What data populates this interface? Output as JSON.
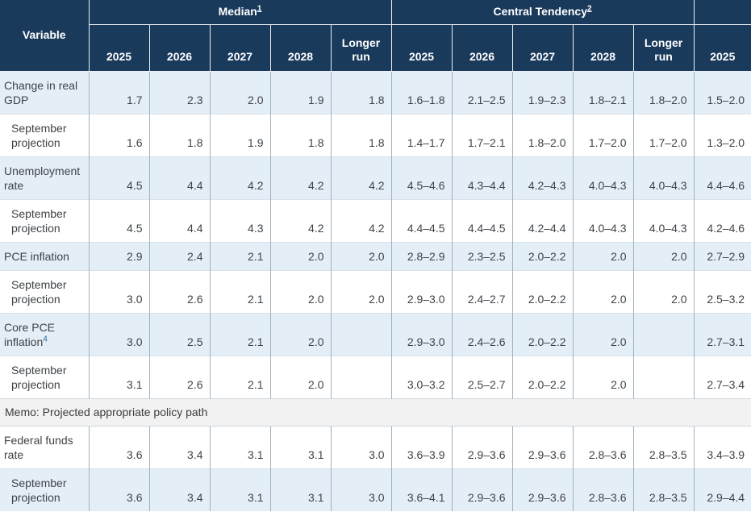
{
  "colors": {
    "header_bg": "#1a3a5c",
    "stripe_blue": "#e4eef7",
    "memo_bg": "#f2f2f2",
    "link_blue": "#2a6496"
  },
  "table": {
    "variable_header": "Variable",
    "col_groups": [
      {
        "label": "Median",
        "footnote": "1",
        "span": 5
      },
      {
        "label": "Central Tendency",
        "footnote": "2",
        "span": 5
      },
      {
        "label": "",
        "footnote": "",
        "span": 1
      }
    ],
    "year_headers": [
      "2025",
      "2026",
      "2027",
      "2028",
      "Longer run",
      "2025",
      "2026",
      "2027",
      "2028",
      "Longer run",
      "2025"
    ],
    "rows": [
      {
        "label": "Change in real GDP",
        "footnote": "",
        "indent": false,
        "shade": "blue",
        "values": [
          "1.7",
          "2.3",
          "2.0",
          "1.9",
          "1.8",
          "1.6–1.8",
          "2.1–2.5",
          "1.9–2.3",
          "1.8–2.1",
          "1.8–2.0",
          "1.5–2.0"
        ]
      },
      {
        "label": "September projection",
        "footnote": "",
        "indent": true,
        "shade": "white",
        "values": [
          "1.6",
          "1.8",
          "1.9",
          "1.8",
          "1.8",
          "1.4–1.7",
          "1.7–2.1",
          "1.8–2.0",
          "1.7–2.0",
          "1.7–2.0",
          "1.3–2.0"
        ]
      },
      {
        "label": "Unemployment rate",
        "footnote": "",
        "indent": false,
        "shade": "blue",
        "values": [
          "4.5",
          "4.4",
          "4.2",
          "4.2",
          "4.2",
          "4.5–4.6",
          "4.3–4.4",
          "4.2–4.3",
          "4.0–4.3",
          "4.0–4.3",
          "4.4–4.6"
        ]
      },
      {
        "label": "September projection",
        "footnote": "",
        "indent": true,
        "shade": "white",
        "values": [
          "4.5",
          "4.4",
          "4.3",
          "4.2",
          "4.2",
          "4.4–4.5",
          "4.4–4.5",
          "4.2–4.4",
          "4.0–4.3",
          "4.0–4.3",
          "4.2–4.6"
        ]
      },
      {
        "label": "PCE inflation",
        "footnote": "",
        "indent": false,
        "shade": "blue",
        "values": [
          "2.9",
          "2.4",
          "2.1",
          "2.0",
          "2.0",
          "2.8–2.9",
          "2.3–2.5",
          "2.0–2.2",
          "2.0",
          "2.0",
          "2.7–2.9"
        ]
      },
      {
        "label": "September projection",
        "footnote": "",
        "indent": true,
        "shade": "white",
        "values": [
          "3.0",
          "2.6",
          "2.1",
          "2.0",
          "2.0",
          "2.9–3.0",
          "2.4–2.7",
          "2.0–2.2",
          "2.0",
          "2.0",
          "2.5–3.2"
        ]
      },
      {
        "label": "Core PCE inflation",
        "footnote": "4",
        "indent": false,
        "shade": "blue",
        "values": [
          "3.0",
          "2.5",
          "2.1",
          "2.0",
          "",
          "2.9–3.0",
          "2.4–2.6",
          "2.0–2.2",
          "2.0",
          "",
          "2.7–3.1"
        ]
      },
      {
        "label": "September projection",
        "footnote": "",
        "indent": true,
        "shade": "white",
        "values": [
          "3.1",
          "2.6",
          "2.1",
          "2.0",
          "",
          "3.0–3.2",
          "2.5–2.7",
          "2.0–2.2",
          "2.0",
          "",
          "2.7–3.4"
        ]
      },
      {
        "type": "memo",
        "label": "Memo: Projected appropriate policy path"
      },
      {
        "label": "Federal funds rate",
        "footnote": "",
        "indent": false,
        "shade": "white",
        "values": [
          "3.6",
          "3.4",
          "3.1",
          "3.1",
          "3.0",
          "3.6–3.9",
          "2.9–3.6",
          "2.9–3.6",
          "2.8–3.6",
          "2.8–3.5",
          "3.4–3.9"
        ]
      },
      {
        "label": "September projection",
        "footnote": "",
        "indent": true,
        "shade": "blue",
        "values": [
          "3.6",
          "3.4",
          "3.1",
          "3.1",
          "3.0",
          "3.6–4.1",
          "2.9–3.6",
          "2.9–3.6",
          "2.8–3.6",
          "2.8–3.5",
          "2.9–4.4"
        ]
      }
    ]
  }
}
